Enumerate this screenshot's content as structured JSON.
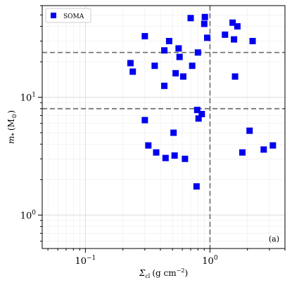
{
  "chart_data": {
    "type": "scatter",
    "x_scale": "log",
    "y_scale": "log",
    "xlim": [
      0.045,
      4.0
    ],
    "ylim": [
      0.52,
      60
    ],
    "xlabel_main": "Σ",
    "xlabel_sub": "cl",
    "xlabel_units": "(g cm",
    "xlabel_sup": "−2",
    "xlabel_close": ")",
    "ylabel_main": "m",
    "ylabel_sub": "*",
    "ylabel_units": "(M",
    "ylabel_sym": "⊙",
    "ylabel_close": ")",
    "x_tick_labels": [
      {
        "value": 0.1,
        "base": "10",
        "exp": "−1"
      },
      {
        "value": 1,
        "base": "10",
        "exp": "0"
      }
    ],
    "y_tick_labels": [
      {
        "value": 1,
        "base": "10",
        "exp": "0"
      },
      {
        "value": 10,
        "base": "10",
        "exp": "1"
      }
    ],
    "grid": true,
    "legend_position": "top-left",
    "panel_label": "(a)",
    "reference_lines": {
      "horizontal": [
        8,
        24
      ],
      "vertical": [
        1.0
      ],
      "color": "#777777",
      "style": "dashed"
    },
    "series": [
      {
        "name": "SOMA",
        "marker": "square",
        "color": "#0000ee",
        "points": [
          {
            "x": 0.7,
            "y": 47
          },
          {
            "x": 0.91,
            "y": 48
          },
          {
            "x": 0.9,
            "y": 42
          },
          {
            "x": 0.95,
            "y": 32
          },
          {
            "x": 1.52,
            "y": 43
          },
          {
            "x": 1.66,
            "y": 40
          },
          {
            "x": 1.32,
            "y": 34
          },
          {
            "x": 1.56,
            "y": 31
          },
          {
            "x": 2.2,
            "y": 30
          },
          {
            "x": 0.3,
            "y": 33
          },
          {
            "x": 0.47,
            "y": 30
          },
          {
            "x": 0.56,
            "y": 26
          },
          {
            "x": 0.43,
            "y": 25
          },
          {
            "x": 0.8,
            "y": 24
          },
          {
            "x": 0.57,
            "y": 22
          },
          {
            "x": 0.23,
            "y": 19.5
          },
          {
            "x": 0.36,
            "y": 18.5
          },
          {
            "x": 0.72,
            "y": 18.5
          },
          {
            "x": 0.24,
            "y": 16.5
          },
          {
            "x": 0.53,
            "y": 16
          },
          {
            "x": 0.61,
            "y": 15
          },
          {
            "x": 1.59,
            "y": 15
          },
          {
            "x": 0.43,
            "y": 12.5
          },
          {
            "x": 0.79,
            "y": 7.8
          },
          {
            "x": 0.86,
            "y": 7.2
          },
          {
            "x": 0.81,
            "y": 6.6
          },
          {
            "x": 0.3,
            "y": 6.4
          },
          {
            "x": 0.51,
            "y": 5.0
          },
          {
            "x": 2.08,
            "y": 5.2
          },
          {
            "x": 0.32,
            "y": 3.9
          },
          {
            "x": 3.2,
            "y": 3.9
          },
          {
            "x": 0.37,
            "y": 3.4
          },
          {
            "x": 1.82,
            "y": 3.4
          },
          {
            "x": 2.7,
            "y": 3.6
          },
          {
            "x": 0.52,
            "y": 3.2
          },
          {
            "x": 0.44,
            "y": 3.05
          },
          {
            "x": 0.63,
            "y": 3.0
          },
          {
            "x": 0.78,
            "y": 1.75
          }
        ]
      }
    ]
  }
}
